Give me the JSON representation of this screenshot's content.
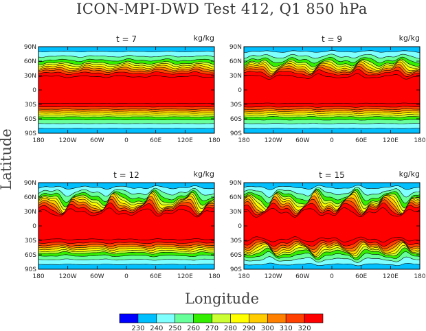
{
  "figure": {
    "title": "ICON-MPI-DWD Test 412, Q1 850 hPa",
    "xlabel": "Longitude",
    "ylabel": "Latitude"
  },
  "chart_data": {
    "type": "heatmap",
    "title": "ICON-MPI-DWD Test 412, Q1 850 hPa",
    "xlabel": "Longitude",
    "ylabel": "Latitude",
    "xlim": [
      -180,
      180
    ],
    "ylim": [
      -90,
      90
    ],
    "x_ticks": [
      -180,
      -120,
      -60,
      0,
      60,
      120,
      180
    ],
    "x_tick_labels": [
      "180",
      "120W",
      "60W",
      "0",
      "60E",
      "120E",
      "180"
    ],
    "y_ticks": [
      90,
      60,
      30,
      0,
      -30,
      -60,
      -90
    ],
    "y_tick_labels": [
      "90N",
      "60N",
      "30N",
      "0",
      "30S",
      "60S",
      "90S"
    ],
    "colorbar": {
      "levels": [
        230,
        240,
        250,
        260,
        270,
        280,
        290,
        300,
        310,
        320
      ],
      "colors": [
        "#0000ff",
        "#00bfff",
        "#80ffff",
        "#66ff99",
        "#33ee00",
        "#ccff33",
        "#ffff00",
        "#ffcc00",
        "#ff8000",
        "#ff4000",
        "#ff0000"
      ]
    },
    "panels": [
      {
        "label": "t = 7",
        "time": 7,
        "unit": "kg/kg",
        "wave_amp_nh": 3,
        "wave_amp_sh": 0.5
      },
      {
        "label": "t = 9",
        "time": 9,
        "unit": "kg/kg",
        "wave_amp_nh": 7,
        "wave_amp_sh": 1
      },
      {
        "label": "t = 12",
        "time": 12,
        "unit": "kg/kg",
        "wave_amp_nh": 12,
        "wave_amp_sh": 2
      },
      {
        "label": "t = 15",
        "time": 15,
        "unit": "kg/kg",
        "wave_amp_nh": 14,
        "wave_amp_sh": 8
      }
    ],
    "profile_lat_edges": [
      80,
      70,
      62,
      56,
      52,
      48,
      44,
      40,
      35,
      28
    ],
    "profile_top_level_index": 1
  }
}
